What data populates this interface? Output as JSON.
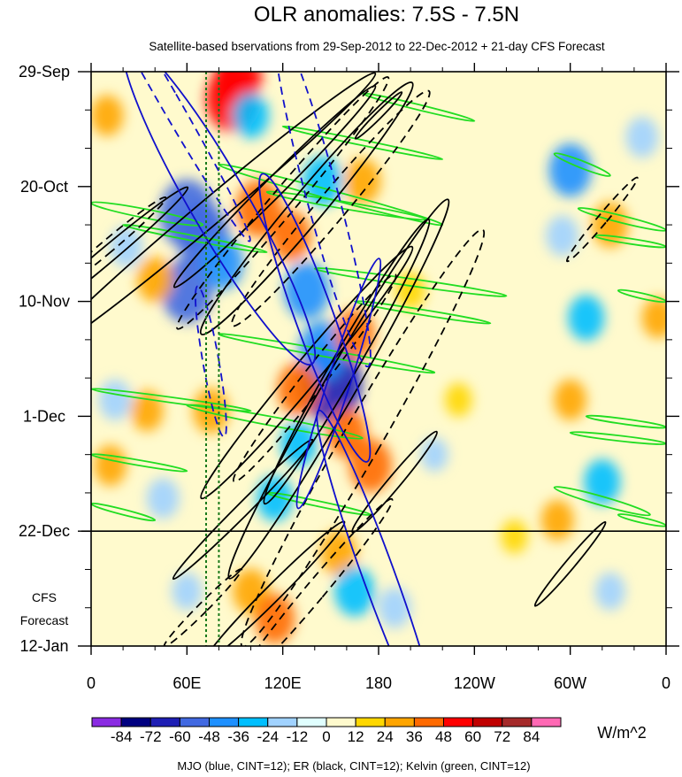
{
  "chart_data": {
    "type": "heatmap",
    "title": "OLR anomalies: 7.5S - 7.5N",
    "subtitle": "Satellite-based bservations from 29-Sep-2012 to 22-Dec-2012 + 21-day CFS Forecast",
    "x_ticks": [
      {
        "lon": 0,
        "label": "0"
      },
      {
        "lon": 60,
        "label": "60E"
      },
      {
        "lon": 120,
        "label": "120E"
      },
      {
        "lon": 180,
        "label": "180"
      },
      {
        "lon": 240,
        "label": "120W"
      },
      {
        "lon": 300,
        "label": "60W"
      },
      {
        "lon": 360,
        "label": "0"
      }
    ],
    "xlim": [
      0,
      360
    ],
    "y_ticks": [
      {
        "day": 0,
        "label": "29-Sep"
      },
      {
        "day": 21,
        "label": "20-Oct"
      },
      {
        "day": 42,
        "label": "10-Nov"
      },
      {
        "day": 63,
        "label": "1-Dec"
      },
      {
        "day": 84,
        "label": "22-Dec"
      },
      {
        "day": 105,
        "label": "12-Jan"
      }
    ],
    "ylim_dates": [
      "29-Sep-2012",
      "12-Jan-2013"
    ],
    "forecast_start": {
      "day": 84,
      "date": "22-Dec-2012"
    },
    "forecast_label": [
      "CFS",
      "Forecast"
    ],
    "reference_longitudes": [
      72,
      80
    ],
    "colorbar": {
      "levels": [
        "-84",
        "-72",
        "-60",
        "-48",
        "-36",
        "-24",
        "-12",
        "0",
        "12",
        "24",
        "36",
        "48",
        "60",
        "72",
        "84"
      ],
      "colors": [
        "#8a2be2",
        "#000080",
        "#1e1eb4",
        "#4169e1",
        "#1e90ff",
        "#00bfff",
        "#a0d2ff",
        "#e0ffff",
        "#fffacd",
        "#ffd700",
        "#ffa500",
        "#ff6a00",
        "#ff0000",
        "#c00000",
        "#a52a2a",
        "#ff69b4"
      ],
      "units": "W/m^2"
    },
    "contour_legend": "MJO (blue, CINT=12); ER (black, CINT=12); Kelvin (green, CINT=12)",
    "contour_colors": {
      "MJO": "#1010cc",
      "ER": "#000000",
      "Kelvin": "#22dd22"
    },
    "anomaly_features": [
      {
        "lon": 88,
        "day": 5,
        "value": 55
      },
      {
        "lon": 92,
        "day": 1,
        "value": 48
      },
      {
        "lon": 60,
        "day": 26,
        "value": -60
      },
      {
        "lon": 70,
        "day": 30,
        "value": -55
      },
      {
        "lon": 60,
        "day": 40,
        "value": -55
      },
      {
        "lon": 82,
        "day": 35,
        "value": -40
      },
      {
        "lon": 105,
        "day": 25,
        "value": 45
      },
      {
        "lon": 125,
        "day": 30,
        "value": 36
      },
      {
        "lon": 135,
        "day": 40,
        "value": -45
      },
      {
        "lon": 150,
        "day": 57,
        "value": -72
      },
      {
        "lon": 145,
        "day": 51,
        "value": -48
      },
      {
        "lon": 130,
        "day": 58,
        "value": 40
      },
      {
        "lon": 160,
        "day": 66,
        "value": 36
      },
      {
        "lon": 175,
        "day": 72,
        "value": 40
      },
      {
        "lon": 165,
        "day": 48,
        "value": 36
      },
      {
        "lon": 130,
        "day": 68,
        "value": -30
      },
      {
        "lon": 170,
        "day": 20,
        "value": 30
      },
      {
        "lon": 145,
        "day": 20,
        "value": -36
      },
      {
        "lon": 100,
        "day": 8,
        "value": -30
      },
      {
        "lon": 40,
        "day": 38,
        "value": 30
      },
      {
        "lon": 22,
        "day": 32,
        "value": -24
      },
      {
        "lon": 10,
        "day": 8,
        "value": 24
      },
      {
        "lon": 15,
        "day": 60,
        "value": -24
      },
      {
        "lon": 35,
        "day": 62,
        "value": 24
      },
      {
        "lon": 12,
        "day": 72,
        "value": 24
      },
      {
        "lon": 45,
        "day": 78,
        "value": -24
      },
      {
        "lon": 75,
        "day": 62,
        "value": 30
      },
      {
        "lon": 115,
        "day": 78,
        "value": -30
      },
      {
        "lon": 100,
        "day": 95,
        "value": 30
      },
      {
        "lon": 115,
        "day": 100,
        "value": 36
      },
      {
        "lon": 155,
        "day": 88,
        "value": 30
      },
      {
        "lon": 165,
        "day": 95,
        "value": -36
      },
      {
        "lon": 190,
        "day": 98,
        "value": -24
      },
      {
        "lon": 60,
        "day": 95,
        "value": -20
      },
      {
        "lon": 300,
        "day": 18,
        "value": -40
      },
      {
        "lon": 295,
        "day": 30,
        "value": -24
      },
      {
        "lon": 325,
        "day": 28,
        "value": 30
      },
      {
        "lon": 310,
        "day": 45,
        "value": -30
      },
      {
        "lon": 300,
        "day": 60,
        "value": 24
      },
      {
        "lon": 320,
        "day": 75,
        "value": -30
      },
      {
        "lon": 292,
        "day": 82,
        "value": 24
      },
      {
        "lon": 325,
        "day": 95,
        "value": -20
      },
      {
        "lon": 345,
        "day": 12,
        "value": -24
      },
      {
        "lon": 355,
        "day": 45,
        "value": 24
      },
      {
        "lon": 200,
        "day": 40,
        "value": 20
      },
      {
        "lon": 215,
        "day": 70,
        "value": -15
      },
      {
        "lon": 230,
        "day": 60,
        "value": 15
      },
      {
        "lon": 265,
        "day": 85,
        "value": 15
      }
    ],
    "mjo_contours": [
      {
        "lon": 80,
        "day": 24,
        "rx": 18,
        "ry": 34,
        "rot": -30,
        "dash": false
      },
      {
        "lon": 140,
        "day": 45,
        "rx": 12,
        "ry": 28,
        "rot": -20,
        "dash": false
      },
      {
        "lon": 155,
        "day": 57,
        "rx": 7,
        "ry": 24,
        "rot": 18,
        "dash": false
      },
      {
        "lon": 145,
        "day": 23,
        "rx": 10,
        "ry": 32,
        "rot": -15,
        "dash": true
      },
      {
        "lon": 75,
        "day": 53,
        "rx": 5,
        "ry": 14,
        "rot": -10,
        "dash": true
      },
      {
        "lon": 180,
        "day": 92,
        "rx": 10,
        "ry": 32,
        "rot": -20,
        "dash": false
      },
      {
        "lon": 48,
        "day": 5,
        "rx": 6,
        "ry": 30,
        "rot": -30,
        "dash": true
      }
    ],
    "er_contours": [
      {
        "lon": 155,
        "day": 58,
        "rx": 10,
        "ry": 40,
        "rot": 30,
        "dash": false
      },
      {
        "lon": 170,
        "day": 67,
        "rx": 12,
        "ry": 44,
        "rot": 30,
        "dash": true
      },
      {
        "lon": 135,
        "day": 25,
        "rx": 10,
        "ry": 30,
        "rot": 40,
        "dash": false
      },
      {
        "lon": 150,
        "day": 25,
        "rx": 9,
        "ry": 28,
        "rot": 40,
        "dash": true
      },
      {
        "lon": 120,
        "day": 24,
        "rx": 8,
        "ry": 30,
        "rot": 40,
        "dash": true
      },
      {
        "lon": 73,
        "day": 26,
        "rx": 8,
        "ry": 40,
        "rot": 50,
        "dash": false
      },
      {
        "lon": 115,
        "day": 21,
        "rx": 6,
        "ry": 26,
        "rot": 45,
        "dash": false
      },
      {
        "lon": 135,
        "day": 55,
        "rx": 8,
        "ry": 30,
        "rot": 40,
        "dash": false
      },
      {
        "lon": 160,
        "day": 53,
        "rx": 8,
        "ry": 30,
        "rot": 30,
        "dash": false
      },
      {
        "lon": 140,
        "day": 56,
        "rx": 7,
        "ry": 24,
        "rot": 38,
        "dash": true
      },
      {
        "lon": 95,
        "day": 80,
        "rx": 4,
        "ry": 18,
        "rot": 45,
        "dash": false
      },
      {
        "lon": 115,
        "day": 95,
        "rx": 5,
        "ry": 18,
        "rot": 45,
        "dash": false
      },
      {
        "lon": 140,
        "day": 95,
        "rx": 6,
        "ry": 22,
        "rot": 40,
        "dash": true
      },
      {
        "lon": 190,
        "day": 75,
        "rx": 4,
        "ry": 12,
        "rot": 40,
        "dash": false
      },
      {
        "lon": 8,
        "day": 34,
        "rx": 5,
        "ry": 20,
        "rot": 50,
        "dash": false
      },
      {
        "lon": 10,
        "day": 32,
        "rx": 4,
        "ry": 14,
        "rot": 50,
        "dash": true
      },
      {
        "lon": 70,
        "day": 98,
        "rx": 3,
        "ry": 10,
        "rot": 45,
        "dash": true
      },
      {
        "lon": 320,
        "day": 27,
        "rx": 3,
        "ry": 10,
        "rot": 40,
        "dash": true
      },
      {
        "lon": 300,
        "day": 90,
        "rx": 3,
        "ry": 10,
        "rot": 40,
        "dash": false
      },
      {
        "lon": 180,
        "day": 8,
        "rx": 2,
        "ry": 6,
        "rot": 45,
        "dash": false
      }
    ],
    "kelvin_contours": [
      {
        "lon1": 0,
        "day1": 24,
        "lon2": 70,
        "day2": 28,
        "w": 5,
        "dash": false
      },
      {
        "lon1": 20,
        "day1": 28,
        "lon2": 110,
        "day2": 33,
        "w": 3,
        "dash": false
      },
      {
        "lon1": 80,
        "day1": 17,
        "lon2": 220,
        "day2": 28,
        "w": 5,
        "dash": false
      },
      {
        "lon1": 110,
        "day1": 22,
        "lon2": 210,
        "day2": 27,
        "w": 4,
        "dash": false
      },
      {
        "lon1": 120,
        "day1": 10,
        "lon2": 220,
        "day2": 16,
        "w": 3,
        "dash": false
      },
      {
        "lon1": 140,
        "day1": 36,
        "lon2": 260,
        "day2": 41,
        "w": 4,
        "dash": false
      },
      {
        "lon1": 165,
        "day1": 42,
        "lon2": 250,
        "day2": 46,
        "w": 3,
        "dash": false
      },
      {
        "lon1": 80,
        "day1": 48,
        "lon2": 215,
        "day2": 55,
        "w": 4,
        "dash": false
      },
      {
        "lon1": 0,
        "day1": 58,
        "lon2": 100,
        "day2": 62,
        "w": 3,
        "dash": false
      },
      {
        "lon1": 60,
        "day1": 61,
        "lon2": 170,
        "day2": 67,
        "w": 5,
        "dash": false
      },
      {
        "lon1": 0,
        "day1": 70,
        "lon2": 60,
        "day2": 73,
        "w": 3,
        "dash": false
      },
      {
        "lon1": 0,
        "day1": 79,
        "lon2": 40,
        "day2": 82,
        "w": 3,
        "dash": false
      },
      {
        "lon1": 290,
        "day1": 15,
        "lon2": 325,
        "day2": 19,
        "w": 4,
        "dash": false
      },
      {
        "lon1": 305,
        "day1": 25,
        "lon2": 360,
        "day2": 29,
        "w": 4,
        "dash": false
      },
      {
        "lon1": 315,
        "day1": 30,
        "lon2": 360,
        "day2": 32,
        "w": 3,
        "dash": false
      },
      {
        "lon1": 310,
        "day1": 63,
        "lon2": 360,
        "day2": 65,
        "w": 3,
        "dash": false
      },
      {
        "lon1": 300,
        "day1": 66,
        "lon2": 360,
        "day2": 68,
        "w": 3,
        "dash": false
      },
      {
        "lon1": 290,
        "day1": 76,
        "lon2": 350,
        "day2": 81,
        "w": 5,
        "dash": false
      },
      {
        "lon1": 330,
        "day1": 81,
        "lon2": 360,
        "day2": 83,
        "w": 3,
        "dash": false
      },
      {
        "lon1": 110,
        "day1": 77,
        "lon2": 175,
        "day2": 81,
        "w": 3,
        "dash": false
      },
      {
        "lon1": 170,
        "day1": 4,
        "lon2": 240,
        "day2": 9,
        "w": 3,
        "dash": false
      },
      {
        "lon1": 330,
        "day1": 40,
        "lon2": 360,
        "day2": 42,
        "w": 3,
        "dash": false
      }
    ]
  }
}
